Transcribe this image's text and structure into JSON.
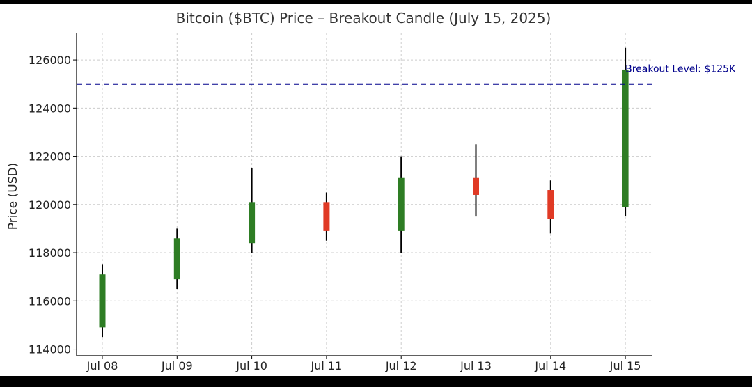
{
  "chart_data": {
    "type": "candlestick",
    "title": "Bitcoin ($BTC) Price – Breakout Candle (July 15, 2025)",
    "xlabel": "",
    "ylabel": "Price (USD)",
    "categories": [
      "Jul 08",
      "Jul 09",
      "Jul 10",
      "Jul 11",
      "Jul 12",
      "Jul 13",
      "Jul 14",
      "Jul 15"
    ],
    "candles": [
      {
        "open": 114900,
        "high": 117500,
        "low": 114500,
        "close": 117100
      },
      {
        "open": 116900,
        "high": 119000,
        "low": 116500,
        "close": 118600
      },
      {
        "open": 118400,
        "high": 121500,
        "low": 118000,
        "close": 120100
      },
      {
        "open": 120100,
        "high": 120500,
        "low": 118500,
        "close": 118900
      },
      {
        "open": 118900,
        "high": 122000,
        "low": 118000,
        "close": 121100
      },
      {
        "open": 121100,
        "high": 122500,
        "low": 119500,
        "close": 120400
      },
      {
        "open": 120600,
        "high": 121000,
        "low": 118800,
        "close": 119400
      },
      {
        "open": 119900,
        "high": 126500,
        "low": 119500,
        "close": 125600
      }
    ],
    "ylim": [
      113900,
      127100
    ],
    "yticks": [
      114000,
      116000,
      118000,
      120000,
      122000,
      124000,
      126000
    ],
    "grid": true,
    "reference_line": {
      "value": 125000,
      "label": "Breakout Level: $125K",
      "color": "#00008b"
    },
    "colors": {
      "up": "#2e7d24",
      "down": "#e03a25",
      "wick": "#000000"
    }
  }
}
